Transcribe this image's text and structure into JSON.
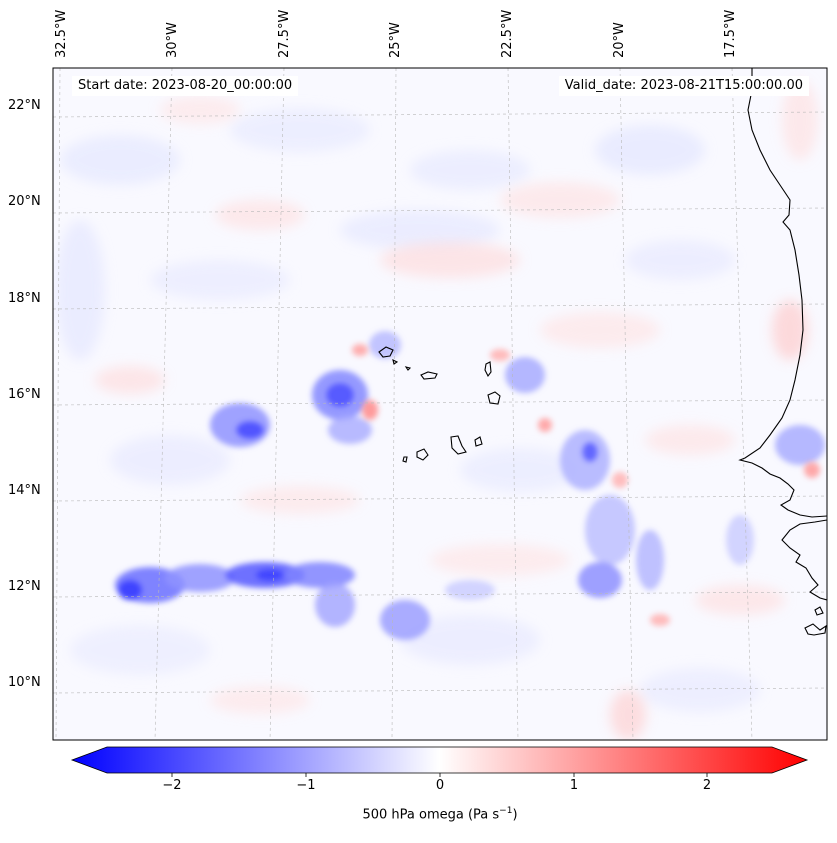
{
  "map": {
    "start_label": "Start date: 2023-08-20_00:00:00",
    "valid_label": "Valid_date: 2023-08-21T15:00:00.00",
    "extent": {
      "lon_min": -33.6,
      "lon_max": -15.8,
      "lat_min": 8.8,
      "lat_max": 22.8
    },
    "longitude_labels": [
      "32.5°W",
      "30°W",
      "27.5°W",
      "25°W",
      "22.5°W",
      "20°W",
      "17.5°W"
    ],
    "latitude_labels": [
      "22°N",
      "20°N",
      "18°N",
      "16°N",
      "14°N",
      "12°N",
      "10°N"
    ],
    "gridlines": true,
    "features": [
      "coastline-west-africa",
      "cape-verde-islands"
    ]
  },
  "colorbar": {
    "label": "500 hPa omega (Pa s",
    "label_exponent": "−1",
    "label_close": ")",
    "ticks": [
      "−2",
      "−1",
      "0",
      "1",
      "2"
    ],
    "range": [
      -2.6,
      2.6
    ],
    "extend": "both",
    "cmap": {
      "low": "#0000ff",
      "mid": "#ffffff",
      "high": "#ff0000"
    }
  }
}
